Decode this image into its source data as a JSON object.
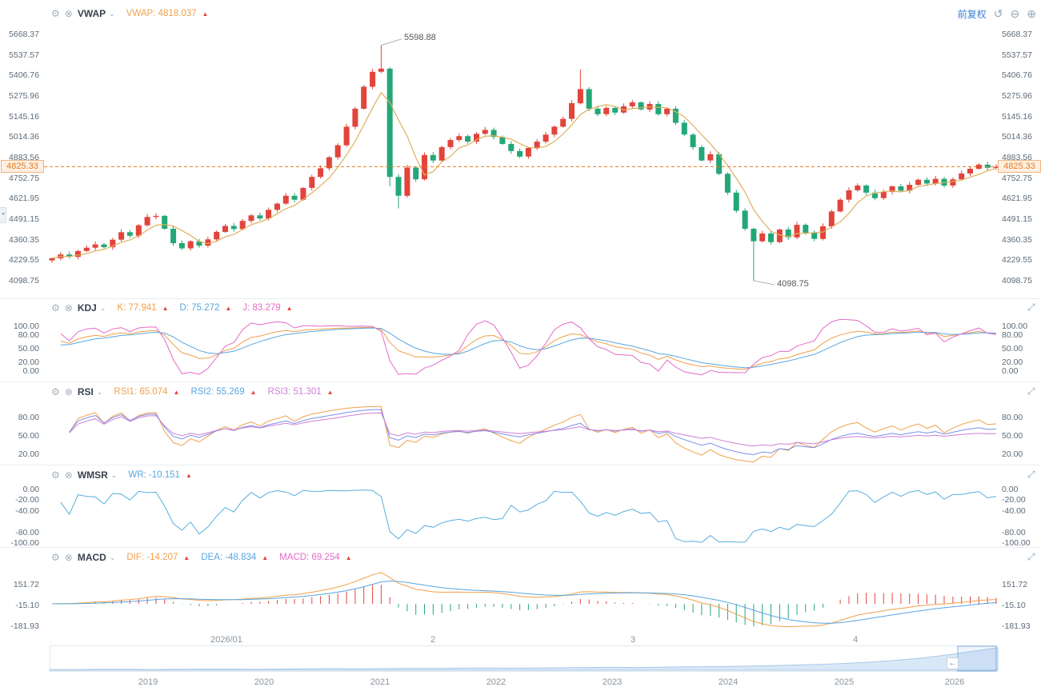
{
  "colors": {
    "up": "#e2443c",
    "down": "#23a776",
    "vwap": "#dfb05e",
    "k": "#f0a04b",
    "d": "#58a6e0",
    "j": "#e56ac8",
    "rsi1": "#f0a04b",
    "rsi2": "#7b8fe8",
    "rsi3": "#cf7fd6",
    "wr": "#58aede",
    "dif": "#f0a04b",
    "dea": "#58a6e0",
    "accent": "#3d7fd6",
    "price": "#e87a1e",
    "annotation": "#555555"
  },
  "main_chart": {
    "indicator_name": "VWAP",
    "readouts": [
      {
        "label": "VWAP:",
        "value": "4818.037",
        "color": "#f0a04b"
      }
    ],
    "y_ticks": [
      "5668.37",
      "5537.57",
      "5406.76",
      "5275.96",
      "5145.16",
      "5014.36",
      "4883.56",
      "4752.75",
      "4621.95",
      "4491.15",
      "4360.35",
      "4229.55",
      "4098.75"
    ],
    "current_price": "4825.33",
    "high_annotation": "5598.88",
    "low_annotation": "4098.75"
  },
  "top_right": {
    "adjust_label": "前复权",
    "reset_icon": "↺",
    "zoom_out_icon": "⊖",
    "zoom_in_icon": "⊕"
  },
  "panels": [
    {
      "id": "kdj",
      "name": "KDJ",
      "readouts": [
        {
          "label": "K:",
          "value": "77.941",
          "color": "#f0a04b"
        },
        {
          "label": "D:",
          "value": "75.272",
          "color": "#58a6e0"
        },
        {
          "label": "J:",
          "value": "83.279",
          "color": "#e56ac8"
        }
      ],
      "ticks": [
        "100.00",
        "80.00",
        "50.00",
        "20.00",
        "0.00"
      ]
    },
    {
      "id": "rsi",
      "name": "RSI",
      "readouts": [
        {
          "label": "RSI1:",
          "value": "65.074",
          "color": "#f0a04b"
        },
        {
          "label": "RSI2:",
          "value": "55.269",
          "color": "#58a6e0"
        },
        {
          "label": "RSI3:",
          "value": "51.301",
          "color": "#cf7fd6"
        }
      ],
      "ticks": [
        "80.00",
        "50.00",
        "20.00"
      ]
    },
    {
      "id": "wmsr",
      "name": "WMSR",
      "readouts": [
        {
          "label": "WR:",
          "value": "-10.151",
          "color": "#58a6e0"
        }
      ],
      "ticks": [
        "0.00",
        "-20.00",
        "-40.00",
        "-80.00",
        "-100.00"
      ]
    },
    {
      "id": "macd",
      "name": "MACD",
      "readouts": [
        {
          "label": "DIF:",
          "value": "-14.207",
          "color": "#f0a04b"
        },
        {
          "label": "DEA:",
          "value": "-48.834",
          "color": "#58a6e0"
        },
        {
          "label": "MACD:",
          "value": "69.254",
          "color": "#e56ac8"
        }
      ],
      "ticks": [
        "151.72",
        "-15.10",
        "-181.93"
      ]
    }
  ],
  "navigator_controls": {
    "left_arrow": "←",
    "collapse_handle": "◂"
  },
  "chart_data": {
    "type": "candlestick",
    "title": "",
    "x_axis_labels": [
      "2026/01",
      "2",
      "3",
      "4"
    ],
    "price_axis_ticks": [
      5668.37,
      5537.57,
      5406.76,
      5275.96,
      5145.16,
      5014.36,
      4883.56,
      4752.75,
      4621.95,
      4491.15,
      4360.35,
      4229.55,
      4098.75
    ],
    "current_price": 4825.33,
    "high_point": 5598.88,
    "low_point": 4098.75,
    "candles": {
      "first_open": 4228,
      "high_index": 38,
      "low_index": 81,
      "closes": [
        4242,
        4266,
        4251,
        4288,
        4309,
        4330,
        4312,
        4360,
        4408,
        4385,
        4452,
        4505,
        4512,
        4430,
        4338,
        4305,
        4350,
        4322,
        4362,
        4410,
        4448,
        4428,
        4480,
        4515,
        4495,
        4550,
        4590,
        4640,
        4615,
        4690,
        4760,
        4815,
        4885,
        4962,
        5080,
        5195,
        5335,
        5430,
        5450,
        4760,
        4640,
        4820,
        4745,
        4900,
        4865,
        4950,
        4995,
        5020,
        4985,
        5035,
        5060,
        5015,
        4970,
        4925,
        4890,
        4945,
        4985,
        5030,
        5080,
        5130,
        5230,
        5320,
        5195,
        5160,
        5200,
        5170,
        5210,
        5235,
        5190,
        5225,
        5160,
        5195,
        5105,
        5030,
        4950,
        4865,
        4905,
        4780,
        4660,
        4545,
        4430,
        4350,
        4400,
        4345,
        4425,
        4375,
        4455,
        4405,
        4365,
        4445,
        4540,
        4615,
        4675,
        4705,
        4660,
        4625,
        4665,
        4700,
        4672,
        4710,
        4742,
        4718,
        4748,
        4705,
        4745,
        4782,
        4812,
        4838,
        4818,
        4825
      ],
      "wick_overrides": {
        "38": {
          "high": 5598.88
        },
        "39": {
          "low": 4700
        },
        "40": {
          "low": 4560
        },
        "61": {
          "high": 5445
        },
        "81": {
          "low": 4098.75
        }
      }
    },
    "indicators": {
      "vwap": {
        "current": 4818.037
      },
      "kdj": {
        "k": 77.941,
        "d": 75.272,
        "j": 83.279,
        "axis": [
          100,
          80,
          50,
          20,
          0
        ]
      },
      "rsi": {
        "rsi1": 65.074,
        "rsi2": 55.269,
        "rsi3": 51.301,
        "axis": [
          80,
          50,
          20
        ]
      },
      "wmsr": {
        "wr": -10.151,
        "axis": [
          0,
          -20,
          -40,
          -80,
          -100
        ]
      },
      "macd": {
        "dif": -14.207,
        "dea": -48.834,
        "macd": 69.254,
        "axis": [
          151.72,
          -15.1,
          -181.93
        ]
      }
    },
    "navigator": {
      "years": [
        "2019",
        "2020",
        "2021",
        "2022",
        "2023",
        "2024",
        "2025",
        "2026"
      ],
      "area": [
        3,
        3,
        4,
        4,
        3,
        4,
        5,
        5,
        4,
        5,
        6,
        7,
        6,
        7,
        8,
        8,
        9,
        10,
        9,
        10,
        11,
        12,
        13,
        12,
        14,
        15,
        16,
        18,
        20,
        23,
        26,
        30,
        36,
        44,
        54,
        68,
        84,
        100
      ]
    }
  }
}
